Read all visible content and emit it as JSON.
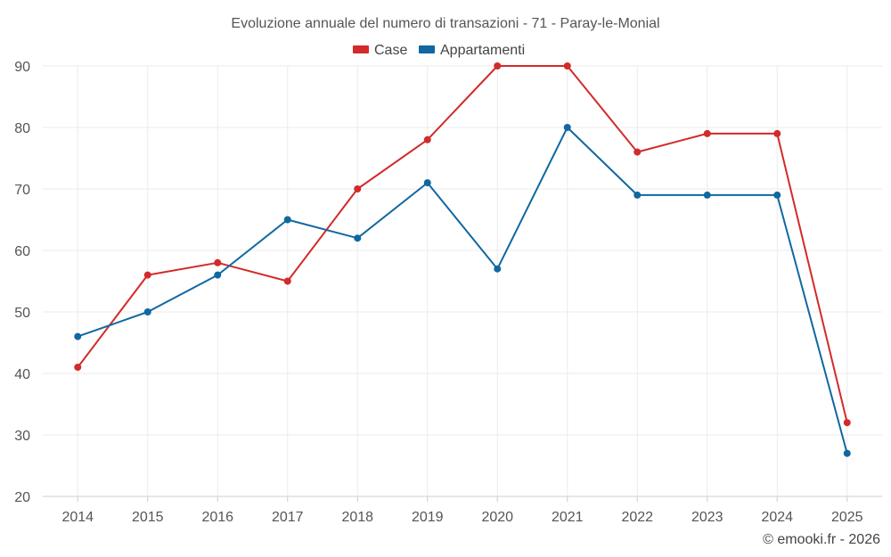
{
  "chart_data": {
    "type": "line",
    "title": "Evoluzione annuale del numero di transazioni - 71 - Paray-le-Monial",
    "categories": [
      "2014",
      "2015",
      "2016",
      "2017",
      "2018",
      "2019",
      "2020",
      "2021",
      "2022",
      "2023",
      "2024",
      "2025"
    ],
    "series": [
      {
        "name": "Case",
        "color": "#d32a2a",
        "values": [
          41,
          56,
          58,
          55,
          70,
          78,
          90,
          90,
          76,
          79,
          79,
          32
        ]
      },
      {
        "name": "Appartamenti",
        "color": "#0f68a0",
        "values": [
          46,
          50,
          56,
          65,
          62,
          71,
          57,
          80,
          69,
          69,
          69,
          27
        ]
      }
    ],
    "ylim": [
      20,
      90
    ],
    "yticks": [
      20,
      30,
      40,
      50,
      60,
      70,
      80,
      90
    ],
    "grid": true,
    "legend": "top-center",
    "xlabel": "",
    "ylabel": ""
  },
  "credit": "© emooki.fr - 2026"
}
